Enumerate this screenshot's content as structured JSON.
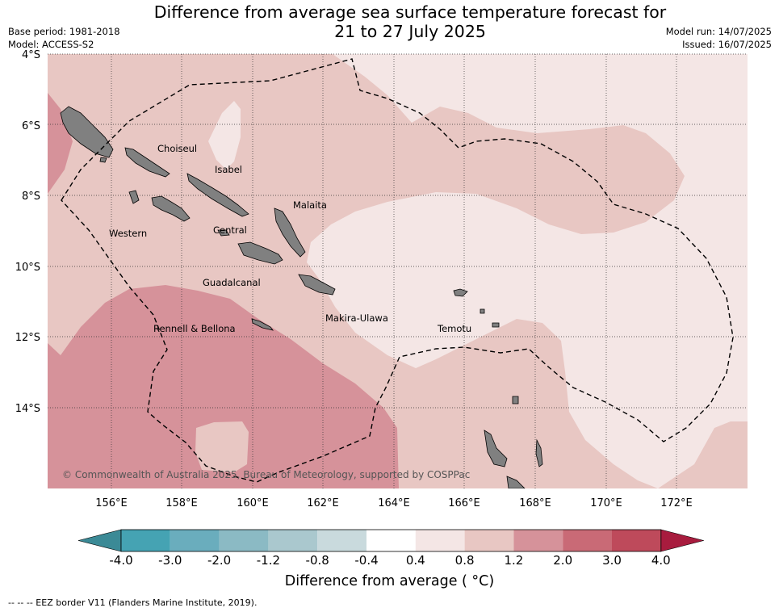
{
  "title_line1": "Difference from average sea surface temperature forecast for",
  "title_line2": "21 to 27 July 2025",
  "meta": {
    "base_period": "Base period: 1981-2018",
    "model": "Model: ACCESS-S2",
    "model_run": "Model run: 14/07/2025",
    "issued": "Issued: 16/07/2025"
  },
  "map": {
    "lat_labels": [
      "4°S",
      "6°S",
      "8°S",
      "10°S",
      "12°S",
      "14°S"
    ],
    "lon_labels": [
      "156°E",
      "158°E",
      "160°E",
      "162°E",
      "164°E",
      "166°E",
      "168°E",
      "170°E",
      "172°E"
    ],
    "regions": [
      "Choiseul",
      "Isabel",
      "Malaita",
      "Western",
      "Central",
      "Guadalcanal",
      "Makira-Ulawa",
      "Temotu",
      "Rennell & Bellona"
    ],
    "copyright": "© Commonwealth of Australia 2025, Bureau of Meteorology, supported by COSPPac",
    "land_color": "#808080"
  },
  "colorbar": {
    "labels": [
      "-4.0",
      "-3.0",
      "-2.0",
      "-1.2",
      "-0.8",
      "-0.4",
      "0.4",
      "0.8",
      "1.2",
      "2.0",
      "3.0",
      "4.0"
    ],
    "colors": [
      "#3b8a96",
      "#45a3b3",
      "#6aadbd",
      "#8bbac4",
      "#aac8ce",
      "#c9dadd",
      "#ffffff",
      "#f4e6e5",
      "#e8c7c3",
      "#d6929a",
      "#c96a76",
      "#be4a5b",
      "#a81c3e"
    ],
    "title": "Difference from average ( °C)"
  },
  "footnote": "--  --  -- EEZ border V11 (Flanders Marine Institute, 2019)."
}
